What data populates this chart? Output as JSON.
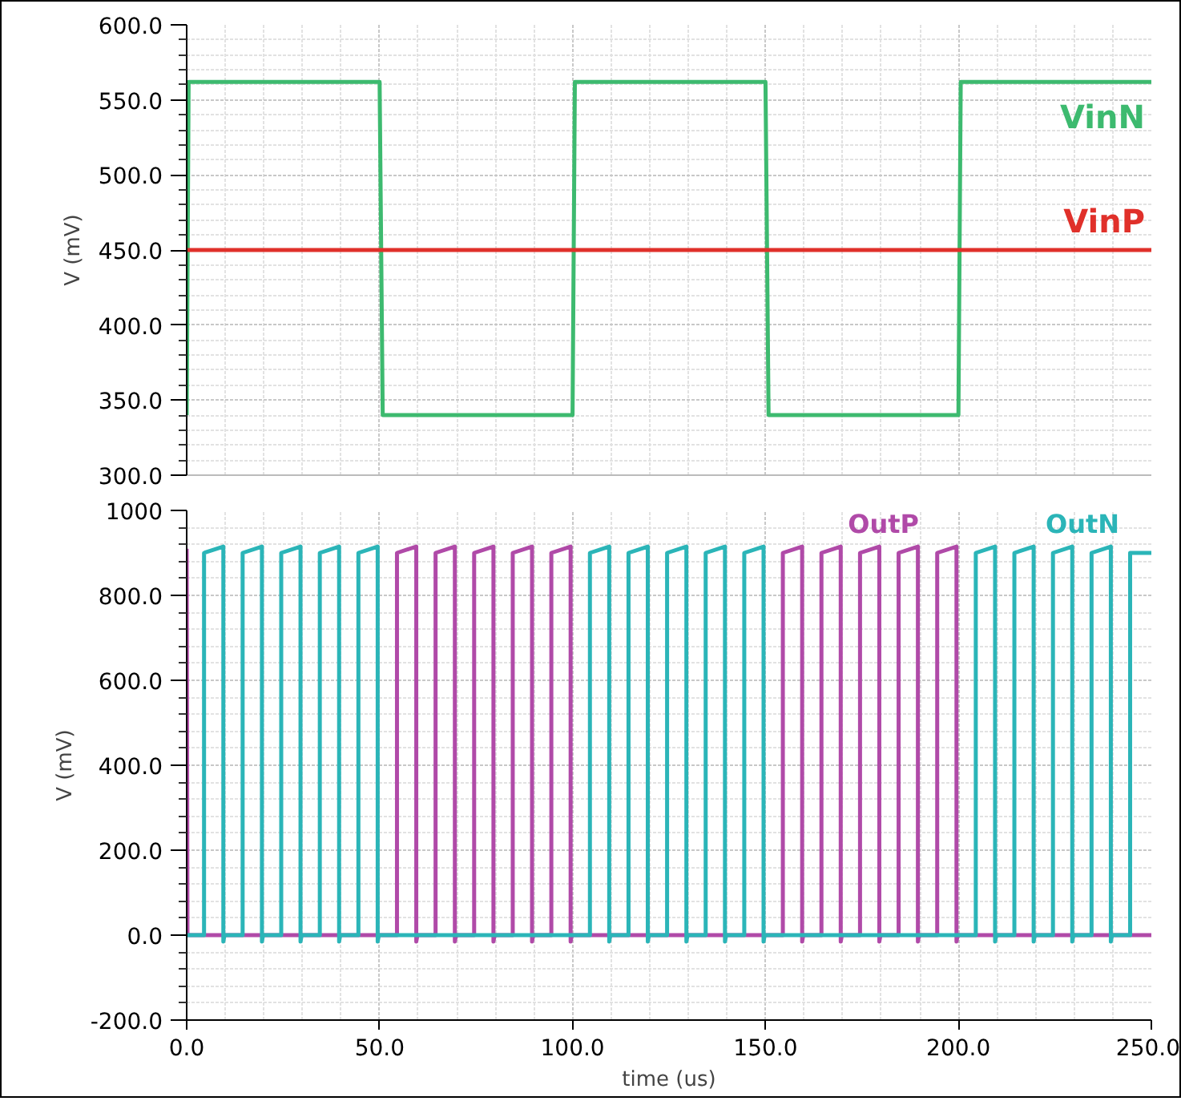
{
  "chart_data": [
    {
      "type": "line",
      "ylabel": "V (mV)",
      "xlim": [
        0,
        250
      ],
      "xticks": [
        {
          "value": 0,
          "label": null
        },
        {
          "value": 50,
          "label": null
        },
        {
          "value": 100,
          "label": null
        },
        {
          "value": 150,
          "label": null
        },
        {
          "value": 200,
          "label": null
        },
        {
          "value": 250,
          "label": null
        }
      ],
      "ylim": [
        300,
        600
      ],
      "yticks": [
        {
          "value": 300,
          "label": "300.0"
        },
        {
          "value": 350,
          "label": "350.0"
        },
        {
          "value": 400,
          "label": "400.0"
        },
        {
          "value": 450,
          "label": "450.0"
        },
        {
          "value": 500,
          "label": "500.0"
        },
        {
          "value": 550,
          "label": "550.0"
        },
        {
          "value": 600,
          "label": "600.0"
        }
      ],
      "tick_labels": "y",
      "grid": true,
      "legend": false,
      "marker": "none",
      "line_style": "solid",
      "series": [
        {
          "name": "VinN",
          "color": "#3dba6f",
          "x": [
            0,
            0.5,
            50,
            50.8,
            100,
            100.6,
            150,
            150.8,
            200,
            200.6,
            250
          ],
          "values": [
            340,
            562,
            562,
            340,
            340,
            562,
            562,
            340,
            340,
            562,
            562
          ]
        },
        {
          "name": "VinP",
          "color": "#e0302a",
          "x": [
            0,
            250
          ],
          "values": [
            450,
            450
          ]
        }
      ]
    },
    {
      "type": "line",
      "ylabel": "V (mV)",
      "xlabel": "time (us)",
      "xlim": [
        0,
        250
      ],
      "xticks": [
        {
          "value": 0,
          "label": "0.0"
        },
        {
          "value": 50,
          "label": "50.0"
        },
        {
          "value": 100,
          "label": "100.0"
        },
        {
          "value": 150,
          "label": "150.0"
        },
        {
          "value": 200,
          "label": "200.0"
        },
        {
          "value": 250,
          "label": "250.0"
        }
      ],
      "ylim": [
        -200,
        1000
      ],
      "yticks": [
        {
          "value": -200,
          "label": "-200.0"
        },
        {
          "value": 0,
          "label": "0.0"
        },
        {
          "value": 200,
          "label": "200.0"
        },
        {
          "value": 400,
          "label": "400.0"
        },
        {
          "value": 600,
          "label": "600.0"
        },
        {
          "value": 800,
          "label": "800.0"
        },
        1000
      ],
      "grid": true,
      "legend": false,
      "marker": "none",
      "line_style": "solid",
      "series": [
        {
          "name": "OutP",
          "color": "#b04aa8",
          "x": [
            0,
            0.2,
            54.5,
            54.5,
            59.5,
            59.5,
            59.8,
            64.5,
            64.5,
            69.5,
            69.5,
            69.8,
            74.5,
            74.5,
            79.5,
            79.5,
            79.8,
            84.5,
            84.5,
            89.5,
            89.5,
            89.8,
            94.5,
            94.5,
            99.5,
            99.5,
            99.8,
            154.5,
            154.5,
            159.5,
            159.5,
            159.8,
            164.5,
            164.5,
            169.5,
            169.5,
            169.8,
            174.5,
            174.5,
            179.5,
            179.5,
            179.8,
            184.5,
            184.5,
            189.5,
            189.5,
            189.8,
            194.5,
            194.5,
            199.5,
            199.5,
            199.8,
            250
          ],
          "values": [
            910,
            0,
            0,
            900,
            915,
            -15,
            0,
            0,
            900,
            915,
            -15,
            0,
            0,
            900,
            915,
            -15,
            0,
            0,
            900,
            915,
            -15,
            0,
            0,
            900,
            915,
            -15,
            0,
            0,
            900,
            915,
            -15,
            0,
            0,
            900,
            915,
            -15,
            0,
            0,
            900,
            915,
            -15,
            0,
            0,
            900,
            915,
            -15,
            0,
            0,
            900,
            915,
            -15,
            0,
            0
          ]
        },
        {
          "name": "OutN",
          "color": "#2bb5b8",
          "x": [
            0,
            4.5,
            4.5,
            9.5,
            9.5,
            9.8,
            14.5,
            14.5,
            19.5,
            19.5,
            19.8,
            24.5,
            24.5,
            29.5,
            29.5,
            29.8,
            34.5,
            34.5,
            39.5,
            39.5,
            39.8,
            44.5,
            44.5,
            49.5,
            49.5,
            49.8,
            104.5,
            104.5,
            109.5,
            109.5,
            109.8,
            114.5,
            114.5,
            119.5,
            119.5,
            119.8,
            124.5,
            124.5,
            129.5,
            129.5,
            129.8,
            134.5,
            134.5,
            139.5,
            139.5,
            139.8,
            144.5,
            144.5,
            149.5,
            149.5,
            149.8,
            204.5,
            204.5,
            209.5,
            209.5,
            209.8,
            214.5,
            214.5,
            219.5,
            219.5,
            219.8,
            224.5,
            224.5,
            229.5,
            229.5,
            229.8,
            234.5,
            234.5,
            239.5,
            239.5,
            239.8,
            244.5,
            244.5,
            250
          ],
          "values": [
            0,
            0,
            900,
            915,
            -15,
            0,
            0,
            900,
            915,
            -15,
            0,
            0,
            900,
            915,
            -15,
            0,
            0,
            900,
            915,
            -15,
            0,
            0,
            900,
            915,
            -15,
            0,
            0,
            900,
            915,
            -15,
            0,
            0,
            900,
            915,
            -15,
            0,
            0,
            900,
            915,
            -15,
            0,
            0,
            900,
            915,
            -15,
            0,
            0,
            900,
            915,
            -15,
            0,
            0,
            900,
            915,
            -15,
            0,
            0,
            900,
            915,
            -15,
            0,
            0,
            900,
            915,
            -15,
            0,
            0,
            900,
            915,
            -15,
            0,
            0,
            900,
            900
          ]
        }
      ]
    }
  ]
}
